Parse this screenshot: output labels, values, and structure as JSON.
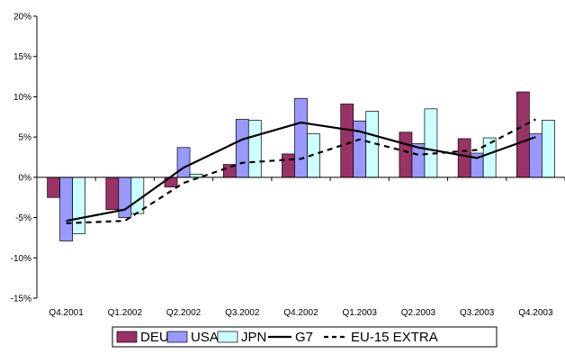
{
  "chart_data": {
    "type": "bar",
    "title": "",
    "xlabel": "",
    "ylabel": "",
    "categories": [
      "Q4.2001",
      "Q1.2002",
      "Q2.2002",
      "Q3.2002",
      "Q4.2002",
      "Q1.2003",
      "Q2.2003",
      "Q3.2003",
      "Q4.2003"
    ],
    "ylim": [
      -0.15,
      0.2
    ],
    "y_ticks": [
      {
        "value": 0.2,
        "label": "20%"
      },
      {
        "value": 0.15,
        "label": "15%"
      },
      {
        "value": 0.1,
        "label": "10%"
      },
      {
        "value": 0.05,
        "label": "5%"
      },
      {
        "value": 0.0,
        "label": "0%"
      },
      {
        "value": -0.05,
        "label": "-5%"
      },
      {
        "value": -0.1,
        "label": "-10%"
      },
      {
        "value": -0.15,
        "label": "-15%"
      }
    ],
    "grid": false,
    "legend_position": "bottom",
    "series": [
      {
        "name": "DEU",
        "kind": "bar",
        "color": "#993366",
        "values": [
          -0.025,
          -0.04,
          -0.012,
          0.016,
          0.029,
          0.091,
          0.056,
          0.048,
          0.106
        ]
      },
      {
        "name": "USA",
        "kind": "bar",
        "color": "#9999FF",
        "values": [
          -0.079,
          -0.05,
          0.037,
          0.072,
          0.098,
          0.07,
          0.042,
          0.03,
          0.054
        ]
      },
      {
        "name": "JPN",
        "kind": "bar",
        "color": "#CCFFFF",
        "values": [
          -0.07,
          -0.045,
          0.004,
          0.071,
          0.054,
          0.082,
          0.085,
          0.049,
          0.071
        ]
      },
      {
        "name": "G7",
        "kind": "line",
        "style": "solid",
        "color": "#000000",
        "values": [
          -0.054,
          -0.04,
          0.012,
          0.047,
          0.068,
          0.057,
          0.037,
          0.024,
          0.05
        ]
      },
      {
        "name": "EU-15 EXTRA",
        "kind": "line",
        "style": "dashed",
        "color": "#000000",
        "values": [
          -0.057,
          -0.054,
          -0.007,
          0.018,
          0.023,
          0.047,
          0.028,
          0.034,
          0.072
        ]
      }
    ]
  }
}
